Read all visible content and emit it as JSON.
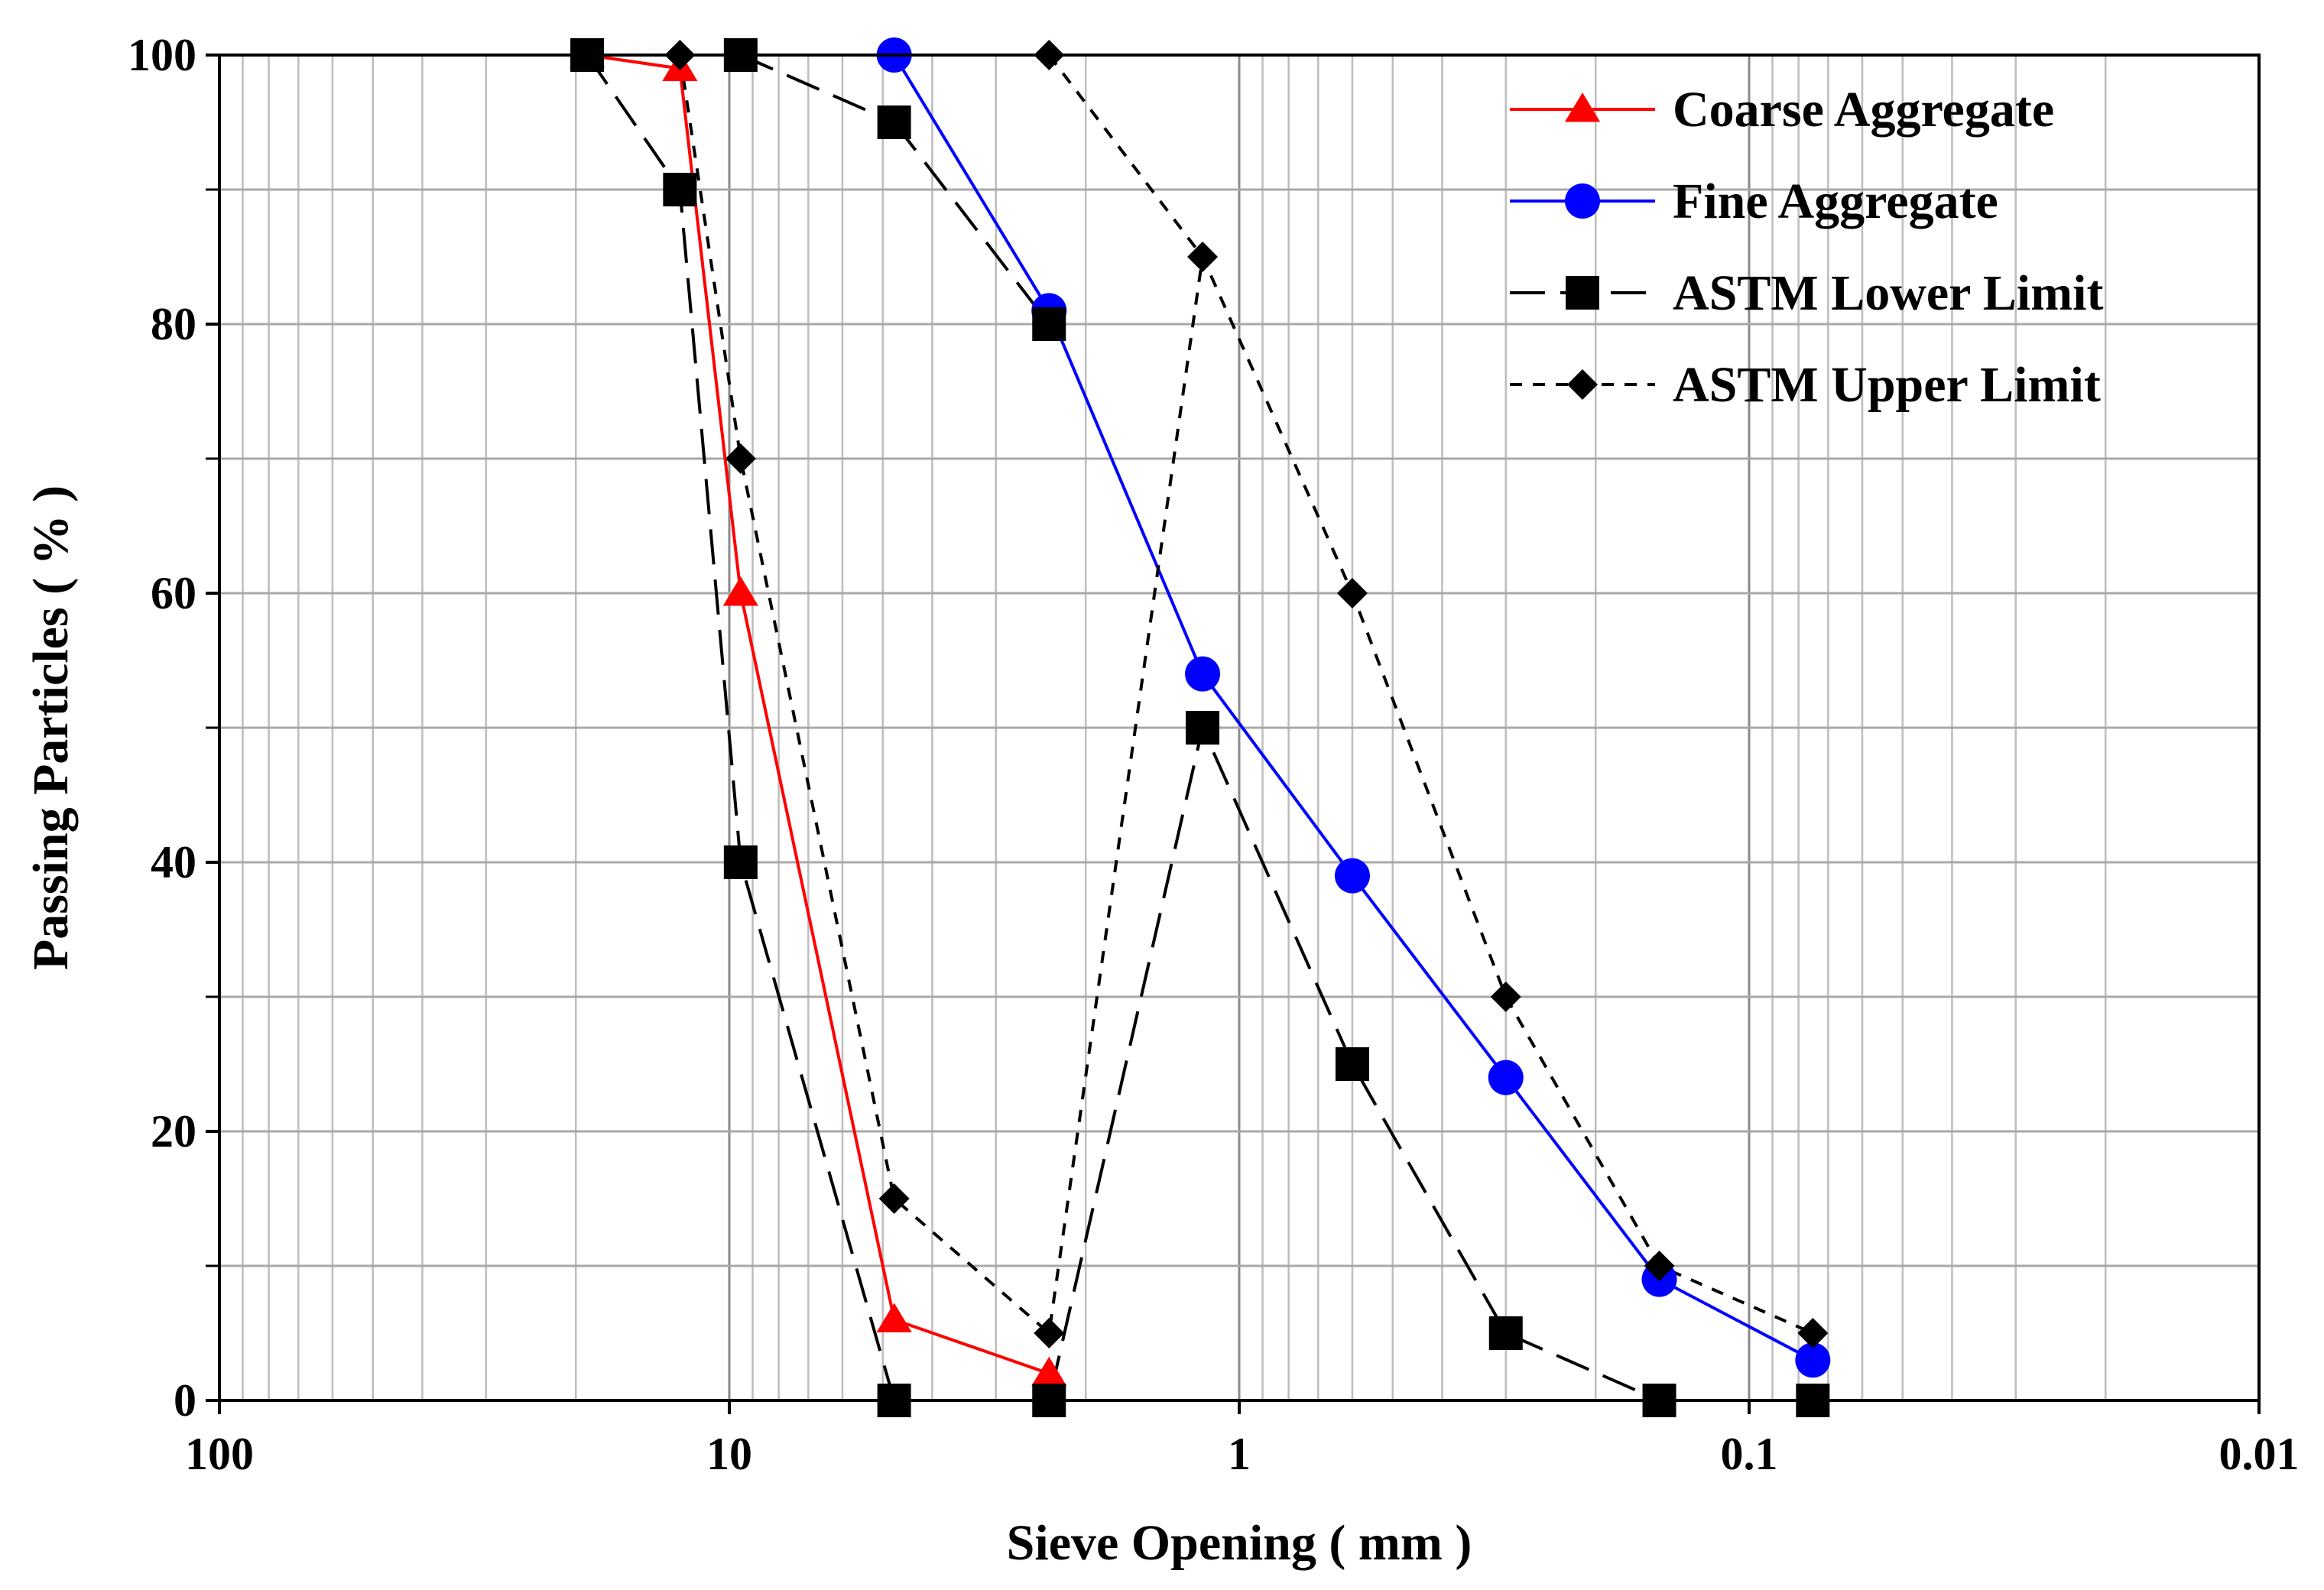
{
  "chart_data": {
    "type": "line",
    "xlabel": "Sieve Opening ( mm )",
    "ylabel": "Passing Particles ( % )",
    "xscale": "log",
    "xreversed": true,
    "xlim": [
      100,
      0.01
    ],
    "ylim": [
      0,
      100
    ],
    "xticks": [
      "100",
      "10",
      "1",
      "0.1",
      "0.01"
    ],
    "yticks": [
      "0",
      "20",
      "40",
      "60",
      "80",
      "100"
    ],
    "grid": true,
    "legend_position": "top-right",
    "series": [
      {
        "name": "Coarse Aggregate",
        "color": "#ff0000",
        "marker": "triangle",
        "dash": "solid",
        "x": [
          19,
          12.5,
          9.5,
          4.75,
          2.36
        ],
        "y": [
          100,
          99,
          60,
          6,
          2
        ]
      },
      {
        "name": "Fine Aggregate",
        "color": "#0000ff",
        "marker": "circle",
        "dash": "solid",
        "x": [
          4.75,
          2.36,
          1.18,
          0.6,
          0.3,
          0.15,
          0.075
        ],
        "y": [
          100,
          81,
          54,
          39,
          24,
          9,
          3
        ]
      },
      {
        "name": "ASTM Lower Limit",
        "color": "#000000",
        "marker": "square",
        "dash": "long-dash",
        "x": [
          19,
          12.5,
          9.5,
          4.75,
          2.36,
          1.18,
          0.6,
          0.3,
          0.15,
          0.075
        ],
        "y": [
          100,
          90,
          40,
          0,
          0,
          50,
          25,
          5,
          0,
          0
        ]
      },
      {
        "name": "ASTM Upper Limit",
        "color": "#000000",
        "marker": "diamond",
        "dash": "short-dash",
        "x": [
          12.5,
          9.5,
          4.75,
          2.36,
          1.18,
          0.6,
          0.3,
          0.15,
          0.075
        ],
        "y": [
          100,
          70,
          15,
          5,
          85,
          60,
          30,
          10,
          5
        ]
      }
    ],
    "extra_segments": [
      {
        "series": "ASTM Lower Limit",
        "x": [
          9.5,
          4.75
        ],
        "y": [
          100,
          95
        ]
      },
      {
        "series": "ASTM Lower Limit",
        "x": [
          4.75,
          2.36
        ],
        "y": [
          95,
          80
        ]
      },
      {
        "series": "ASTM Upper Limit",
        "x": [
          2.36,
          1.18
        ],
        "y": [
          100,
          85
        ]
      }
    ],
    "extra_points": [
      {
        "series": "ASTM Lower Limit",
        "x": 9.5,
        "y": 100
      },
      {
        "series": "ASTM Lower Limit",
        "x": 4.75,
        "y": 95
      },
      {
        "series": "ASTM Lower Limit",
        "x": 2.36,
        "y": 80
      },
      {
        "series": "ASTM Upper Limit",
        "x": 2.36,
        "y": 100
      }
    ]
  }
}
